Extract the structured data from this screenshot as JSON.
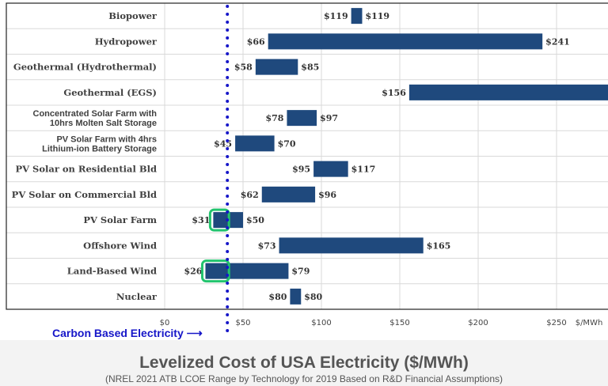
{
  "chart_data": {
    "type": "bar",
    "orientation": "horizontal-range",
    "title": "Levelized Cost of USA Electricity ($/MWh)",
    "subtitle": "(NREL 2021 ATB LCOE Range by Technology for 2019 Based on R&D Financial Assumptions)",
    "xlabel": "$/MWh",
    "xlim": [
      0,
      283
    ],
    "xticks": [
      "$0",
      "$50",
      "$100",
      "$150",
      "$200",
      "$250"
    ],
    "xtick_values": [
      0,
      50,
      100,
      150,
      200,
      250
    ],
    "grid": true,
    "bar_color": "#1f497d",
    "highlight_color": "#22c46e",
    "reference_line": {
      "label": "Carbon Based Electricity",
      "value": 40,
      "color": "#1616c8"
    },
    "categories": [
      {
        "name": "Biopower",
        "min": 119,
        "max": 119,
        "min_label": "$119",
        "max_label": "$119",
        "bar_min": 119,
        "bar_max": 126,
        "highlight": false
      },
      {
        "name": "Hydropower",
        "min": 66,
        "max": 241,
        "min_label": "$66",
        "max_label": "$241",
        "highlight": false
      },
      {
        "name": "Geothermal (Hydrothermal)",
        "min": 58,
        "max": 85,
        "min_label": "$58",
        "max_label": "$85",
        "highlight": false
      },
      {
        "name": "Geothermal (EGS)",
        "min": 156,
        "max": null,
        "min_label": "$156",
        "max_label": "",
        "highlight": false
      },
      {
        "name": "Concentrated Solar Farm with\n10hrs Molten Salt Storage",
        "min": 78,
        "max": 97,
        "min_label": "$78",
        "max_label": "$97",
        "highlight": false
      },
      {
        "name": "PV Solar Farm with 4hrs\nLithium-ion Battery Storage",
        "min": 45,
        "max": 70,
        "min_label": "$45",
        "max_label": "$70",
        "highlight": false
      },
      {
        "name": "PV Solar on Residential Bld",
        "min": 95,
        "max": 117,
        "min_label": "$95",
        "max_label": "$117",
        "highlight": false
      },
      {
        "name": "PV Solar on Commercial Bld",
        "min": 62,
        "max": 96,
        "min_label": "$62",
        "max_label": "$96",
        "highlight": false
      },
      {
        "name": "PV Solar Farm",
        "min": 31,
        "max": 50,
        "min_label": "$31",
        "max_label": "$50",
        "highlight": true
      },
      {
        "name": "Offshore Wind",
        "min": 73,
        "max": 165,
        "min_label": "$73",
        "max_label": "$165",
        "highlight": false
      },
      {
        "name": "Land-Based Wind",
        "min": 26,
        "max": 79,
        "min_label": "$26",
        "max_label": "$79",
        "highlight": true
      },
      {
        "name": "Nuclear",
        "min": 80,
        "max": 80,
        "min_label": "$80",
        "max_label": "$80",
        "bar_min": 80,
        "bar_max": 87,
        "highlight": false
      }
    ]
  }
}
